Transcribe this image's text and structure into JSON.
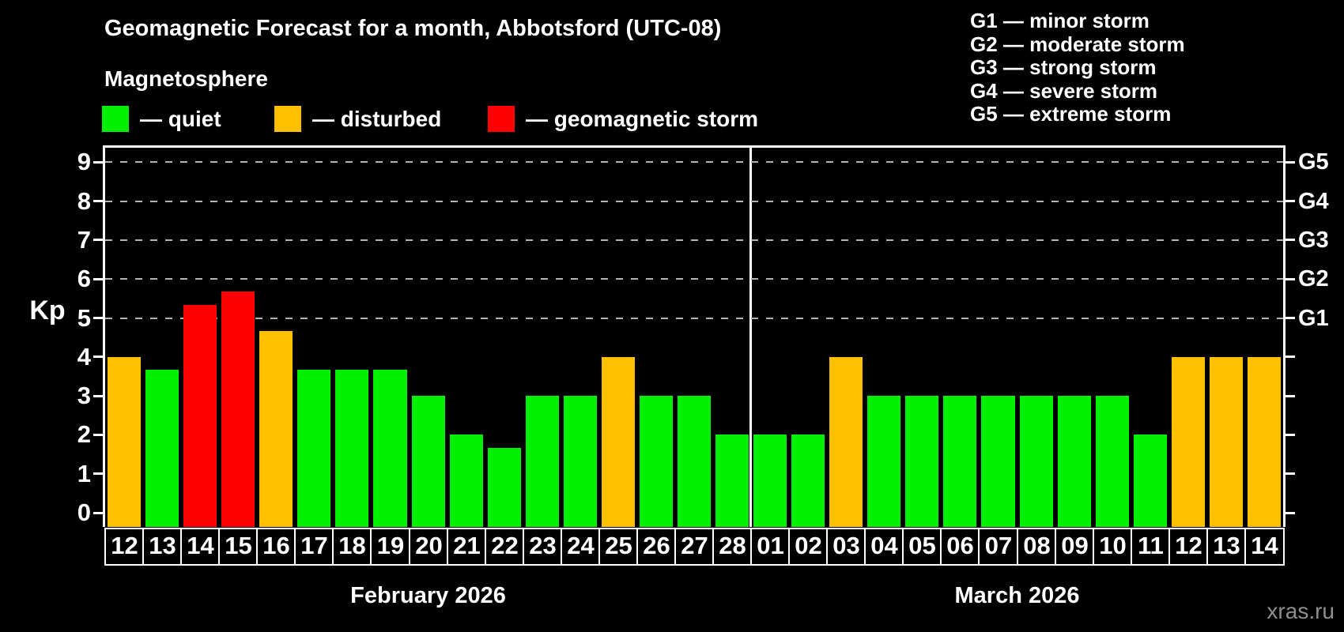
{
  "legend": {
    "items": [
      {
        "id": "quiet",
        "label": "— quiet",
        "color": "#00f000"
      },
      {
        "id": "disturbed",
        "label": "— disturbed",
        "color": "#ffc000"
      },
      {
        "id": "storm",
        "label": "— geomagnetic storm",
        "color": "#ff0000"
      }
    ]
  },
  "g_legend": {
    "lines": [
      "G1 — minor storm",
      "G2 — moderate storm",
      "G3 — strong storm",
      "G4 — severe storm",
      "G5 — extreme storm"
    ]
  },
  "watermark": {
    "text": "xras.ru"
  },
  "chart_data": {
    "type": "bar",
    "title": "Geomagnetic Forecast for a month, Abbotsford (UTC-08)",
    "subtitle": "Magnetosphere",
    "ylabel": "Kp",
    "ylim": [
      0,
      9.4
    ],
    "yticks": [
      0,
      1,
      2,
      3,
      4,
      5,
      6,
      7,
      8,
      9
    ],
    "gridlines_at": [
      5,
      6,
      7,
      8,
      9
    ],
    "right_axis_labels": [
      {
        "kp": 5,
        "label": "G1"
      },
      {
        "kp": 6,
        "label": "G2"
      },
      {
        "kp": 7,
        "label": "G3"
      },
      {
        "kp": 8,
        "label": "G4"
      },
      {
        "kp": 9,
        "label": "G5"
      }
    ],
    "categories": [
      "12",
      "13",
      "14",
      "15",
      "16",
      "17",
      "18",
      "19",
      "20",
      "21",
      "22",
      "23",
      "24",
      "25",
      "26",
      "27",
      "28",
      "01",
      "02",
      "03",
      "04",
      "05",
      "06",
      "07",
      "08",
      "09",
      "10",
      "11",
      "12",
      "13",
      "14"
    ],
    "values": [
      4.0,
      3.67,
      5.33,
      5.67,
      4.67,
      3.67,
      3.67,
      3.67,
      3.0,
      2.0,
      1.67,
      3.0,
      3.0,
      4.0,
      3.0,
      3.0,
      2.0,
      2.0,
      2.0,
      4.0,
      3.0,
      3.0,
      3.0,
      3.0,
      3.0,
      3.0,
      3.0,
      2.0,
      4.0,
      4.0,
      4.0
    ],
    "statuses": [
      "disturbed",
      "quiet",
      "storm",
      "storm",
      "disturbed",
      "quiet",
      "quiet",
      "quiet",
      "quiet",
      "quiet",
      "quiet",
      "quiet",
      "quiet",
      "disturbed",
      "quiet",
      "quiet",
      "quiet",
      "quiet",
      "quiet",
      "disturbed",
      "quiet",
      "quiet",
      "quiet",
      "quiet",
      "quiet",
      "quiet",
      "quiet",
      "quiet",
      "disturbed",
      "disturbed",
      "disturbed"
    ],
    "status_colors": {
      "quiet": "#00f000",
      "disturbed": "#ffc000",
      "storm": "#ff0000"
    },
    "months": [
      {
        "label": "February 2026",
        "days": 17
      },
      {
        "label": "March 2026",
        "days": 14
      }
    ],
    "grid": true,
    "legend_position": "top"
  }
}
